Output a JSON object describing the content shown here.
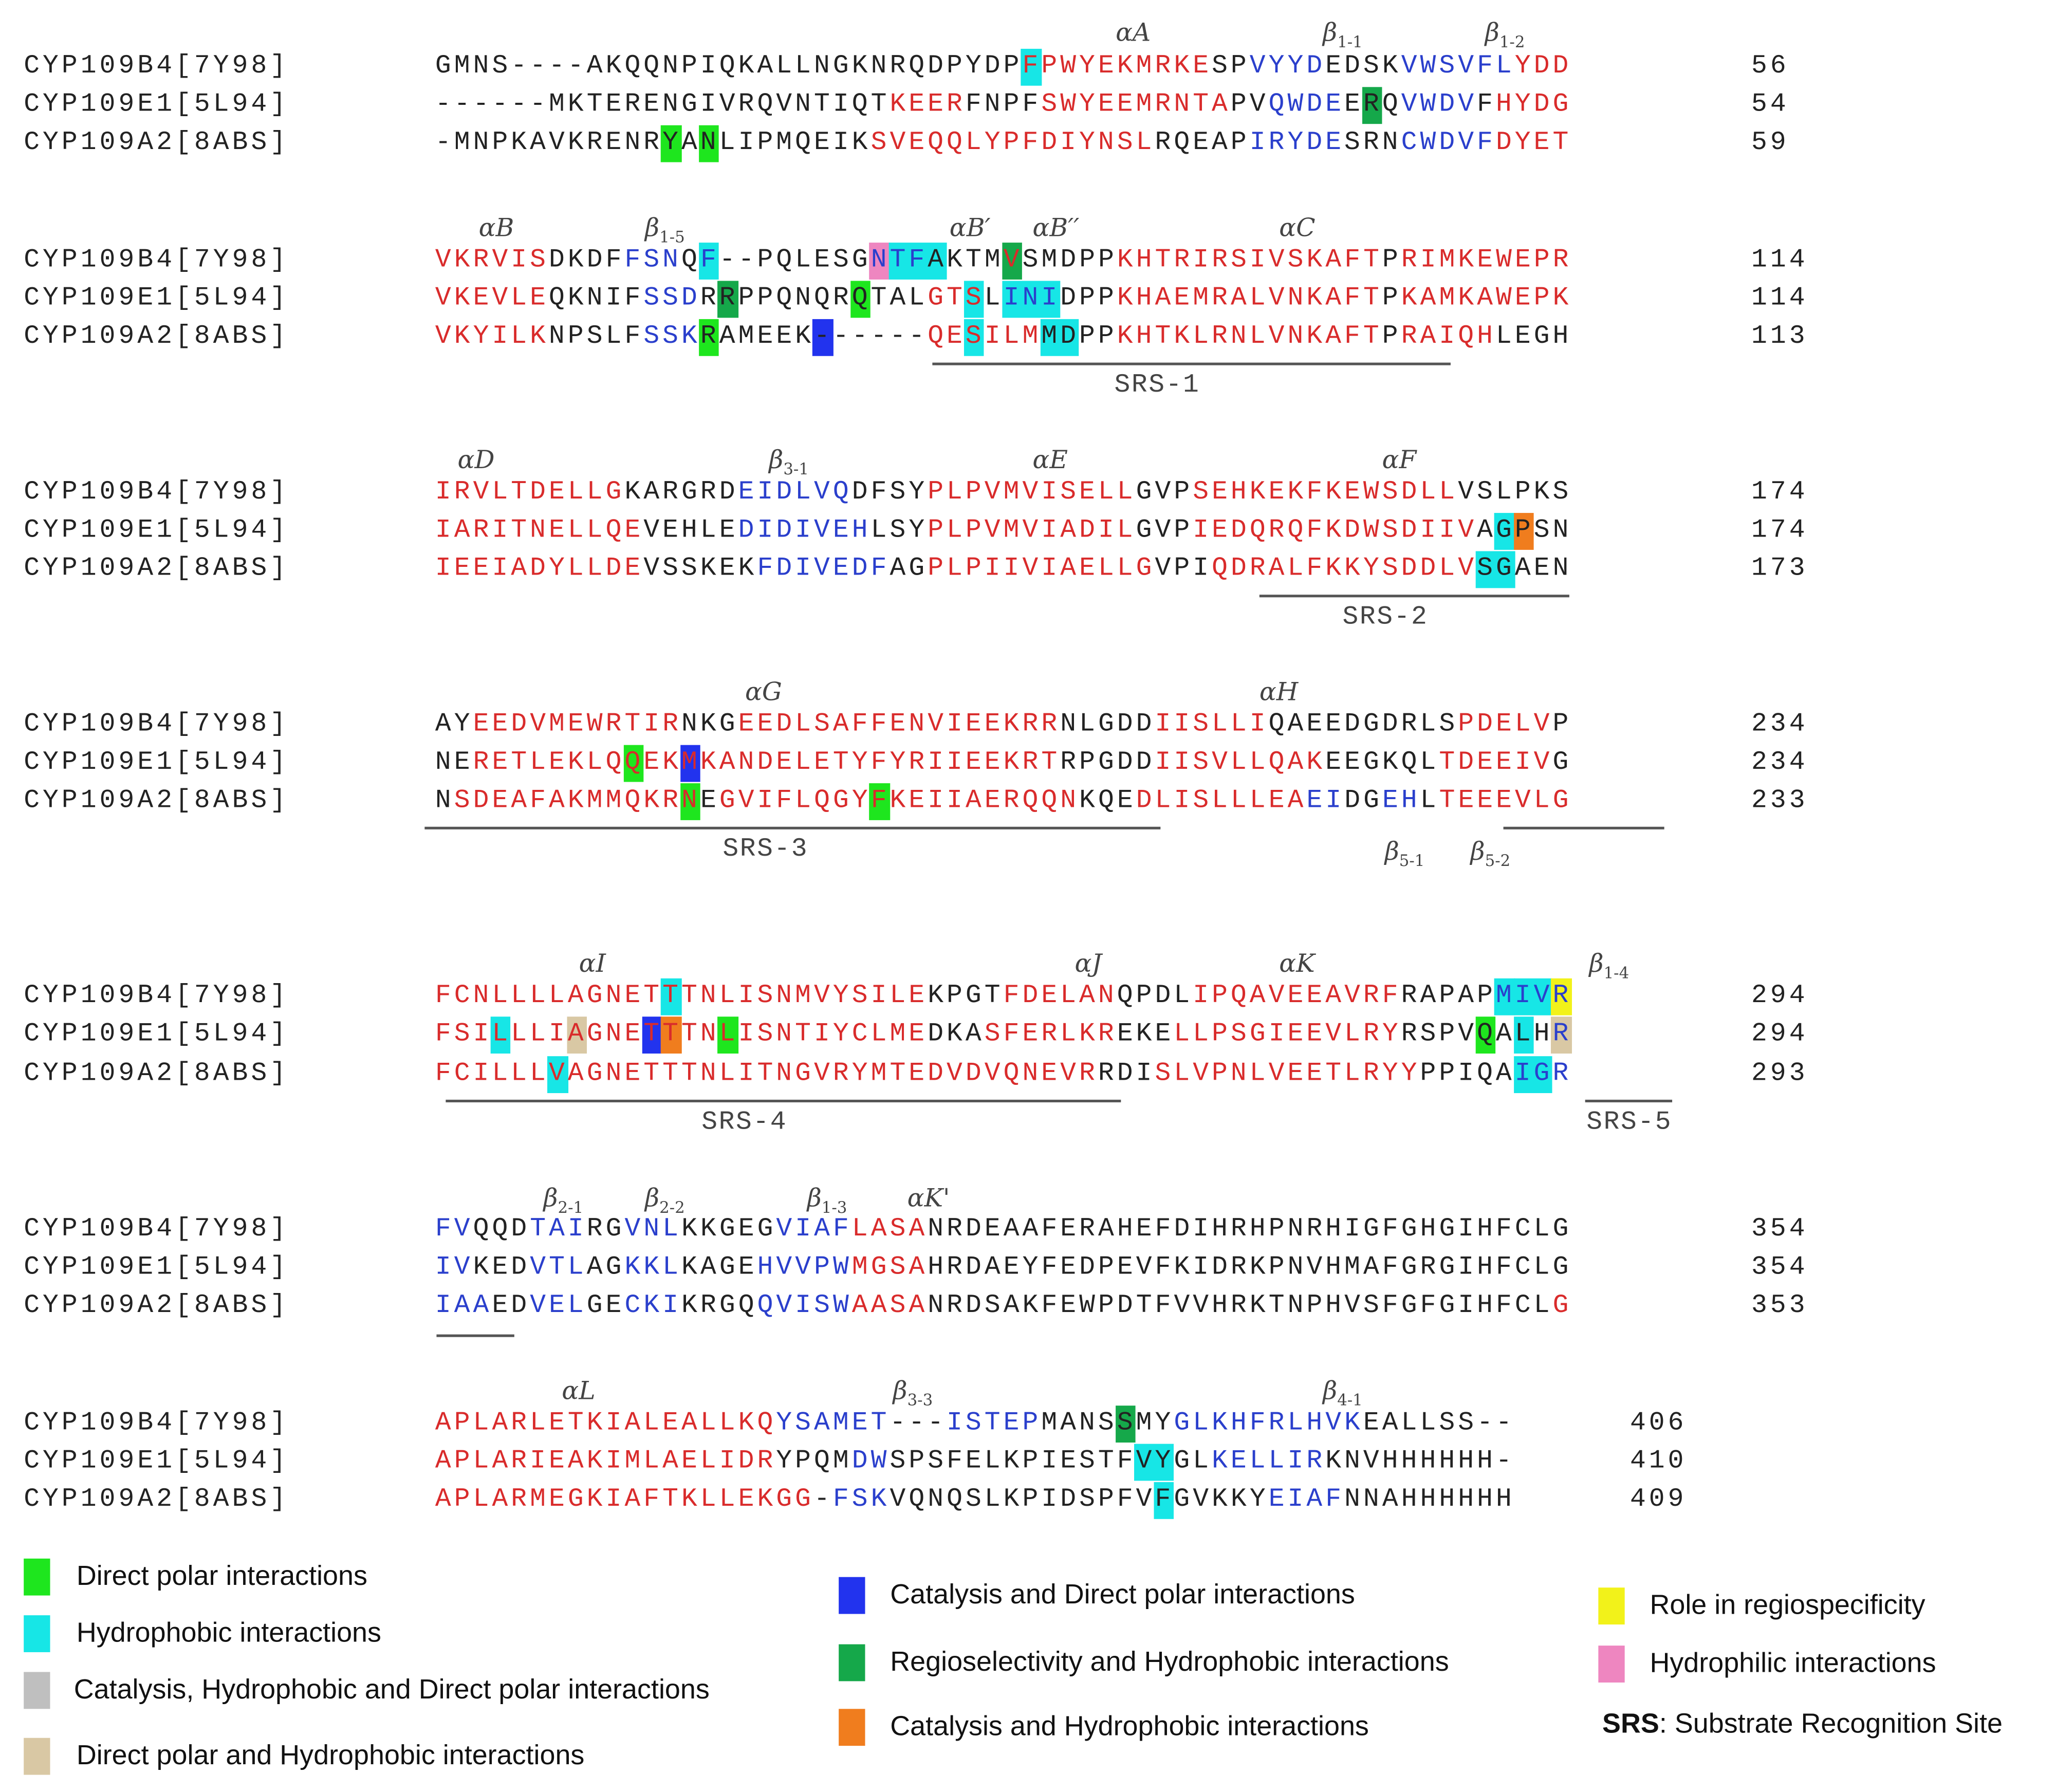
{
  "colors": {
    "helix_text": "#d92b2b",
    "strand_text": "#2a3fcc",
    "coil_text": "#222222",
    "direct_polar": "#1ee61e",
    "hydrophobic": "#17e6e6",
    "catalysis_hydrophobic_polar": "#bfbfbf",
    "polar_hydrophobic": "#d9c8a4",
    "catalysis_polar": "#2233ee",
    "regioselectivity_hydrophobic": "#15a84a",
    "catalysis_hydrophobic": "#f07d1e",
    "regiospecificity": "#f2f21a",
    "hydrophilic": "#ee86c0"
  },
  "sequence_names": [
    "CYP109B4[7Y98]",
    "CYP109E1[5L94]",
    "CYP109A2[8ABS]"
  ],
  "blocks": [
    {
      "rows": [
        {
          "name": "CYP109B4[7Y98]",
          "seq": "GMNS----AKQQNPIQKALLNGKNRQDPYDPFPWYEKMRKESPVYYDEDSKVWSVFLYDD",
          "num": "56"
        },
        {
          "name": "CYP109E1[5L94]",
          "seq": "------MKTERENGIVRQVNTIQTKEERFNPFSWYEEMRNTAPVQWDEERQVWDVFHYDG",
          "num": "54"
        },
        {
          "name": "CYP109A2[8ABS]",
          "seq": "-MNPKAVKRENRYANLIPMQEIKSVEQQLYPFDIYNSLRQEAPIRYDESRNCWDVFDYET",
          "num": "59"
        }
      ],
      "ss_labels": [
        {
          "greek": "α",
          "main": "A",
          "sub": ""
        },
        {
          "greek": "β",
          "main": "",
          "sub": "1-1"
        },
        {
          "greek": "β",
          "main": "",
          "sub": "1-2"
        }
      ],
      "srs": []
    },
    {
      "rows": [
        {
          "name": "CYP109B4[7Y98]",
          "seq": "VKRVISDKDFFSNQF--PQLESGNTFAKTMVSMDPPKHTRIRSIVSKAFTPRIMKEWEPR",
          "num": "114"
        },
        {
          "name": "CYP109E1[5L94]",
          "seq": "VKEVLEQKNIFSSDRRPPQNQRQTALGTSLINIDPPKHAEMRALVNKAFTPKAMKAWEPK",
          "num": "114"
        },
        {
          "name": "CYP109A2[8ABS]",
          "seq": "VKYILKNPSLFSSKRAMEEK------QESILMMDPPKHTKLRNLVNKAFTPRAIQHLEGH",
          "num": "113"
        }
      ],
      "ss_labels": [
        {
          "greek": "α",
          "main": "B",
          "sub": ""
        },
        {
          "greek": "β",
          "main": "",
          "sub": "1-5"
        },
        {
          "greek": "α",
          "main": "B′",
          "sub": ""
        },
        {
          "greek": "α",
          "main": "B′′",
          "sub": ""
        },
        {
          "greek": "α",
          "main": "C",
          "sub": ""
        }
      ],
      "srs": [
        {
          "label": "SRS-1"
        }
      ]
    },
    {
      "rows": [
        {
          "name": "CYP109B4[7Y98]",
          "seq": "IRVLTDELLGKARGRDEIDLVQDFSYPLPVMVISELLGVPSEHKEKFKEWSDLLVSLPKS",
          "num": "174"
        },
        {
          "name": "CYP109E1[5L94]",
          "seq": "IARITNELLQEVEHLEDIDIVEHLSYPLPVMVIADILGVPIEDQRQFKDWSDIIVAGPSN",
          "num": "174"
        },
        {
          "name": "CYP109A2[8ABS]",
          "seq": "IEEIADYLLDEVSSKEKFDIVEDFAGPLPIIVIAELLGVPIQDRALFKKYSDDLVSGAEN",
          "num": "173"
        }
      ],
      "ss_labels": [
        {
          "greek": "α",
          "main": "D",
          "sub": ""
        },
        {
          "greek": "β",
          "main": "",
          "sub": "3-1"
        },
        {
          "greek": "α",
          "main": "E",
          "sub": ""
        },
        {
          "greek": "α",
          "main": "F",
          "sub": ""
        }
      ],
      "srs": [
        {
          "label": "SRS-2"
        }
      ]
    },
    {
      "rows": [
        {
          "name": "CYP109B4[7Y98]",
          "seq": "AYEEDVMEWRTIRNKGEEDLSAFFENVIEEKRRNLGDDIISLLIQAEEDGDRLSPDELVP",
          "num": "234"
        },
        {
          "name": "CYP109E1[5L94]",
          "seq": "NERETLEKLQQEKMKANDELETYFYRIIEEKRTRPGDDIISVLLQAKEEGKQLTDEEIVG",
          "num": "234"
        },
        {
          "name": "CYP109A2[8ABS]",
          "seq": "NSDEAFAKMMQKRNEGVIFLQGYFKEIIAERQQNKQEDLISLLLEAEIDGEHLTEEEVLG",
          "num": "233"
        }
      ],
      "ss_labels": [
        {
          "greek": "α",
          "main": "G",
          "sub": ""
        },
        {
          "greek": "α",
          "main": "H",
          "sub": ""
        },
        {
          "greek": "β",
          "main": "",
          "sub": "5-1"
        },
        {
          "greek": "β",
          "main": "",
          "sub": "5-2"
        }
      ],
      "srs": [
        {
          "label": "SRS-3"
        }
      ]
    },
    {
      "rows": [
        {
          "name": "CYP109B4[7Y98]",
          "seq": "FCNLLLLAGNETTTNLISNMVYSILEKPGTFDELANQPDLIPQAVEEAVRFRAPAPMIVR",
          "num": "294"
        },
        {
          "name": "CYP109E1[5L94]",
          "seq": "FSILLLIAGNETTTNLISNTIYCLMEDKASFERLKREKELLPSGIEEVLRYRSPVQALHR",
          "num": "294"
        },
        {
          "name": "CYP109A2[8ABS]",
          "seq": "FCILLLVAGNETTTNLITNGVRYMTEDVDVQNEVRRDISLVPNLVEETLRYYPPIQAIGR",
          "num": "293"
        }
      ],
      "ss_labels": [
        {
          "greek": "α",
          "main": "I",
          "sub": ""
        },
        {
          "greek": "α",
          "main": "J",
          "sub": ""
        },
        {
          "greek": "α",
          "main": "K",
          "sub": ""
        },
        {
          "greek": "β",
          "main": "",
          "sub": "1-4"
        }
      ],
      "srs": [
        {
          "label": "SRS-4"
        },
        {
          "label": "SRS-5"
        }
      ]
    },
    {
      "rows": [
        {
          "name": "CYP109B4[7Y98]",
          "seq": "FVQQDTAIRGVNLKKGEGVIAFLASANRDEAAFERAHEFDIHRHPNRHIGFGHGIHFCLG",
          "num": "354"
        },
        {
          "name": "CYP109E1[5L94]",
          "seq": "IVKEDVTLAGKKLKAGEHVVPWMGSAHRDAEYFEDPEVFKIDRKPNVHMAFGRGIHFCLG",
          "num": "354"
        },
        {
          "name": "CYP109A2[8ABS]",
          "seq": "IAAEDVELGECKIKRGQQVISWAASANRDSAKFEWPDTFVVHRKTNPHVSFGFGIHFCLG",
          "num": "353"
        }
      ],
      "ss_labels": [
        {
          "greek": "β",
          "main": "",
          "sub": "2-1"
        },
        {
          "greek": "β",
          "main": "",
          "sub": "2-2"
        },
        {
          "greek": "β",
          "main": "",
          "sub": "1-3"
        },
        {
          "greek": "α",
          "main": "K'",
          "sub": ""
        }
      ],
      "srs": []
    },
    {
      "rows": [
        {
          "name": "CYP109B4[7Y98]",
          "seq": "APLARLETKIALEALLKQYSAMET---ISTEPMANSSMYGLKHFRLHVKEALLSS--",
          "num": "406"
        },
        {
          "name": "CYP109E1[5L94]",
          "seq": "APLARIEAKIMLAELIDRYPQMDWSPSFELKPIESTFVYGLKELLIRKNVHHHHHH-",
          "num": "410"
        },
        {
          "name": "CYP109A2[8ABS]",
          "seq": "APLARMEGKIAFTKLLEKGG-FSKVQNQSLKPIDSPFVFGVKKYEIAFNNAHHHHHH",
          "num": "409"
        }
      ],
      "ss_labels": [
        {
          "greek": "α",
          "main": "L",
          "sub": ""
        },
        {
          "greek": "β",
          "main": "",
          "sub": "3-3"
        },
        {
          "greek": "β",
          "main": "",
          "sub": "4-1"
        }
      ],
      "srs": []
    }
  ],
  "legend": [
    {
      "label": "Direct polar interactions",
      "color_key": "direct_polar"
    },
    {
      "label": "Hydrophobic interactions",
      "color_key": "hydrophobic"
    },
    {
      "label": "Catalysis, Hydrophobic and Direct polar interactions",
      "color_key": "catalysis_hydrophobic_polar"
    },
    {
      "label": "Direct polar and Hydrophobic interactions",
      "color_key": "polar_hydrophobic"
    },
    {
      "label": "Catalysis and Direct polar interactions",
      "color_key": "catalysis_polar"
    },
    {
      "label": "Regioselectivity and Hydrophobic interactions",
      "color_key": "regioselectivity_hydrophobic"
    },
    {
      "label": "Catalysis and Hydrophobic interactions",
      "color_key": "catalysis_hydrophobic"
    },
    {
      "label": "Role in regiospecificity",
      "color_key": "regiospecificity"
    },
    {
      "label": "Hydrophilic interactions",
      "color_key": "hydrophilic"
    }
  ],
  "srs_note": {
    "bold": "SRS",
    "text": ": Substrate Recognition Site"
  }
}
